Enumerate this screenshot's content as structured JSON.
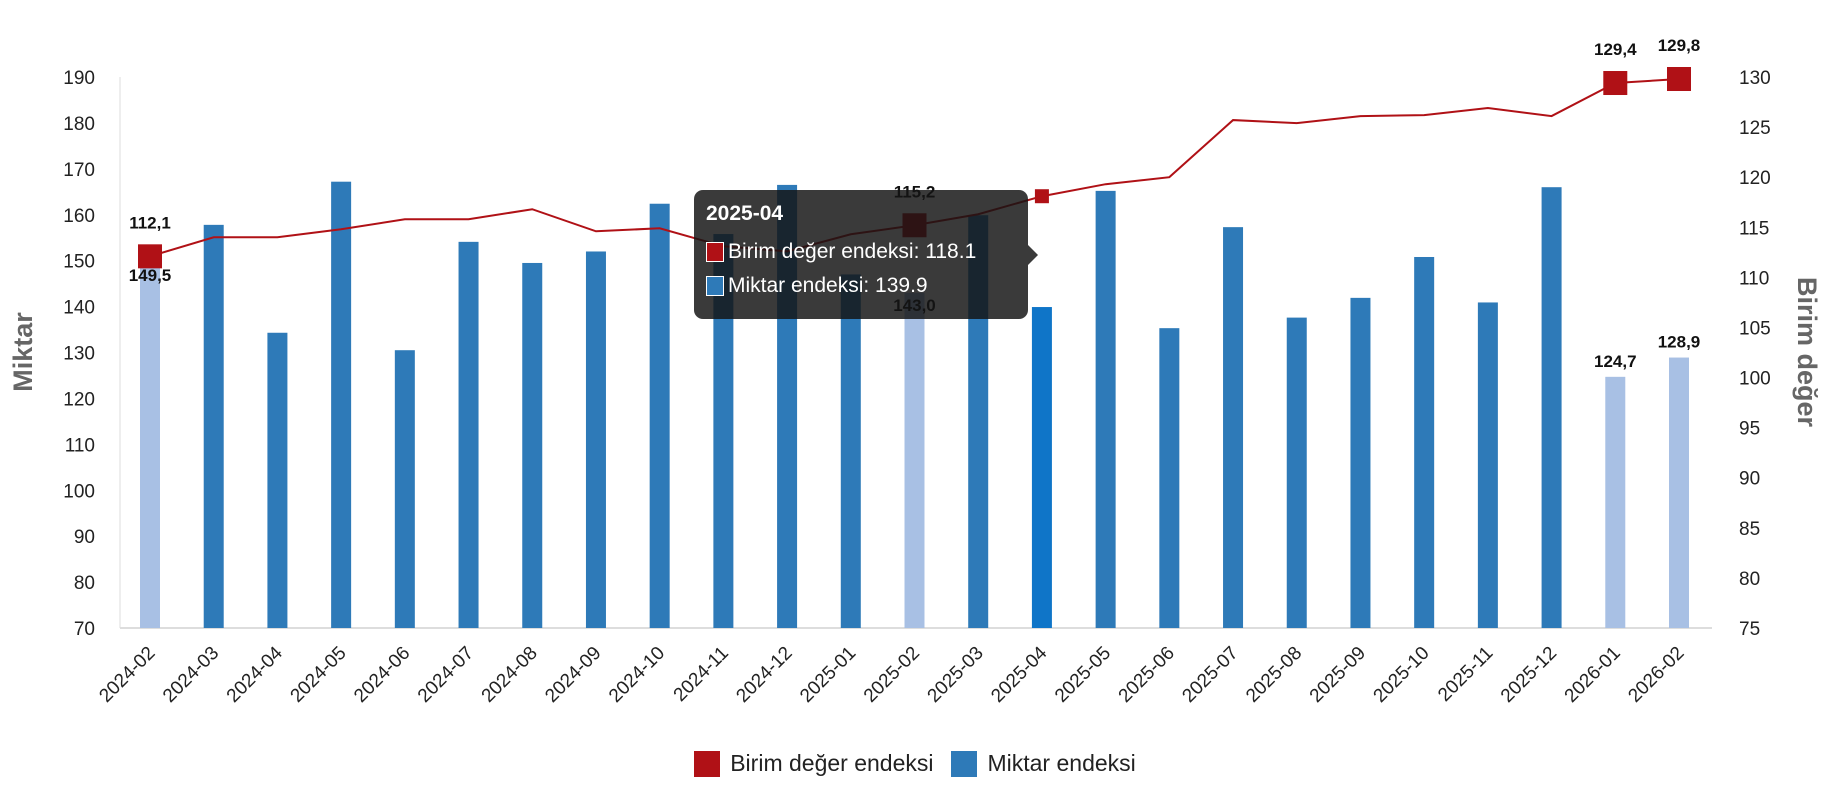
{
  "chart_data": {
    "type": "bar+line",
    "categories": [
      "2024-02",
      "2024-03",
      "2024-04",
      "2024-05",
      "2024-06",
      "2024-07",
      "2024-08",
      "2024-09",
      "2024-10",
      "2024-11",
      "2024-12",
      "2025-01",
      "2025-02",
      "2025-03",
      "2025-04",
      "2025-05",
      "2025-06",
      "2025-07",
      "2025-08",
      "2025-09",
      "2025-10",
      "2025-11",
      "2025-12",
      "2026-01",
      "2026-02"
    ],
    "series": [
      {
        "name": "Birim değer endeksi",
        "type": "line",
        "axis": "right",
        "color": "#b01116",
        "values": [
          112.1,
          114.0,
          114.0,
          114.8,
          115.8,
          115.8,
          116.8,
          114.6,
          114.9,
          113.1,
          112.6,
          114.3,
          115.2,
          116.3,
          118.1,
          119.3,
          120.0,
          125.7,
          125.4,
          126.1,
          126.2,
          126.9,
          126.1,
          129.4,
          129.8
        ]
      },
      {
        "name": "Miktar endeksi",
        "type": "bar",
        "axis": "left",
        "color": "#2e7ab8",
        "highlight_color": "#a8c0e4",
        "values": [
          149.5,
          157.8,
          134.3,
          167.2,
          130.5,
          154.1,
          149.5,
          152.0,
          162.4,
          155.8,
          166.5,
          147.0,
          143.0,
          159.9,
          139.9,
          165.2,
          135.3,
          157.3,
          137.6,
          141.9,
          150.8,
          140.9,
          166.0,
          124.7,
          128.9
        ],
        "highlighted": [
          "2024-02",
          "2025-02",
          "2026-01",
          "2026-02"
        ]
      }
    ],
    "data_labels": {
      "line": {
        "2024-02": "112,1",
        "2025-02": "115,2",
        "2026-01": "129,4",
        "2026-02": "129,8"
      },
      "bar": {
        "2024-02": "149,5",
        "2025-02": "143,0",
        "2026-01": "124,7",
        "2026-02": "128,9"
      }
    },
    "ylabel": "Miktar",
    "y2label": "Birim değer",
    "ylim": [
      70,
      190
    ],
    "yticks": [
      70,
      80,
      90,
      100,
      110,
      120,
      130,
      140,
      150,
      160,
      170,
      180,
      190
    ],
    "y2lim": [
      75,
      130
    ],
    "y2ticks": [
      75,
      80,
      85,
      90,
      95,
      100,
      105,
      110,
      115,
      120,
      125,
      130
    ],
    "grid": false,
    "legend": "bottom"
  },
  "tooltip": {
    "title": "2025-04",
    "rows": [
      {
        "label": "Birim değer endeksi: 118.1",
        "color": "#b01116"
      },
      {
        "label": "Miktar endeksi: 139.9",
        "color": "#2e7ab8"
      }
    ]
  },
  "legend": [
    {
      "label": "Birim değer endeksi",
      "color": "#b01116"
    },
    {
      "label": "Miktar endeksi",
      "color": "#2e7ab8"
    }
  ]
}
